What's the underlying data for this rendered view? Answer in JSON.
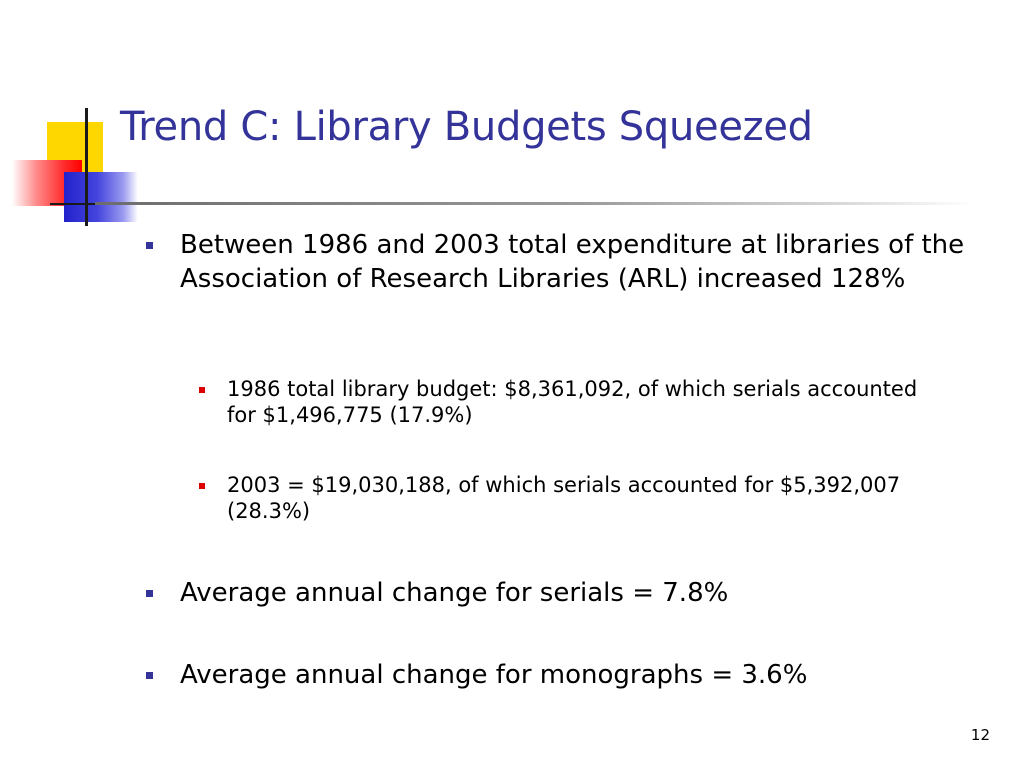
{
  "slide": {
    "title": "Trend C: Library Budgets Squeezed",
    "bullets": [
      {
        "level": 1,
        "text": "Between 1986 and 2003 total expenditure at libraries of the Association of Research Libraries (ARL) increased 128%"
      },
      {
        "level": 2,
        "text": "1986 total library budget: $8,361,092, of which serials accounted for $1,496,775 (17.9%)"
      },
      {
        "level": 2,
        "text": "2003 = $19,030,188, of which serials accounted for $5,392,007 (28.3%)"
      },
      {
        "level": 1,
        "text": "Average annual change for serials = 7.8%"
      },
      {
        "level": 1,
        "text": "Average annual change for monographs = 3.6%"
      }
    ],
    "page_number": "12"
  },
  "colors": {
    "title": "#333399",
    "level1_marker": "#333399",
    "level2_marker": "#dd0000",
    "decor_yellow": "#ffd700",
    "decor_red": "#ff0000",
    "decor_blue": "#2222cc"
  }
}
